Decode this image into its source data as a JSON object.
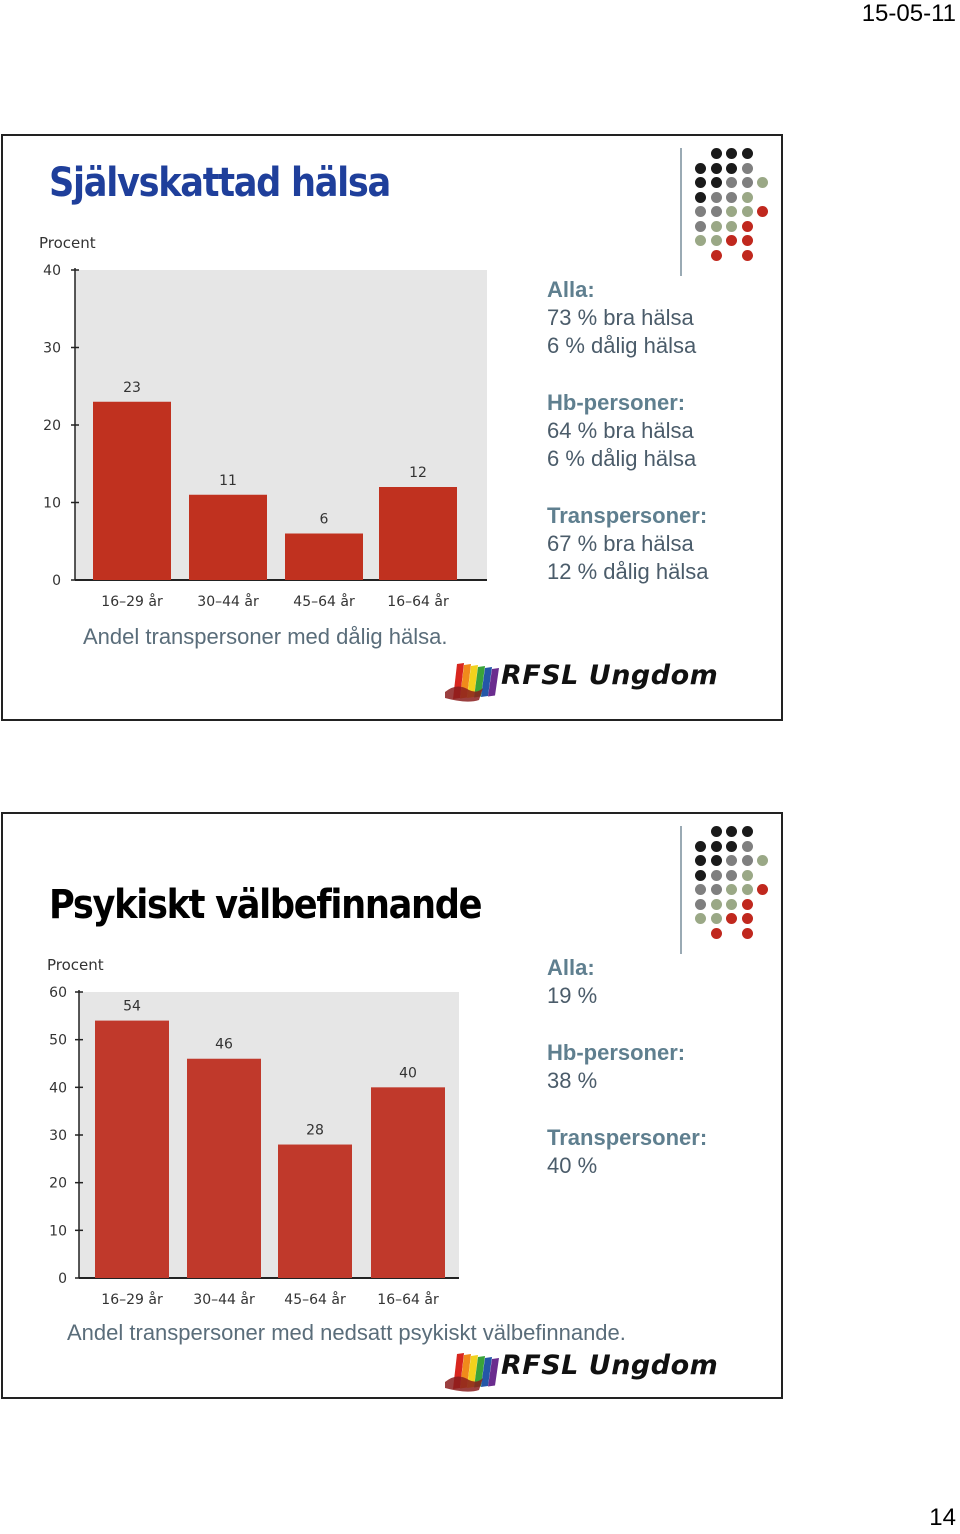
{
  "page": {
    "date": "15-05-11",
    "number": "14"
  },
  "slides": [
    {
      "title": "Självskattad hälsa",
      "caption": "Andel transpersoner med dålig hälsa.",
      "stats": [
        {
          "head": "Alla:",
          "lines": [
            "73 % bra hälsa",
            "6 % dålig hälsa"
          ]
        },
        {
          "head": "Hb-personer:",
          "lines": [
            "64 % bra hälsa",
            "6 % dålig hälsa"
          ]
        },
        {
          "head": "Transpersoner:",
          "lines": [
            "67 % bra hälsa",
            "12 % dålig hälsa"
          ]
        }
      ],
      "logo_text": "RFSL Ungdom"
    },
    {
      "title": "Psykiskt välbefinnande",
      "caption": "Andel transpersoner med nedsatt psykiskt välbefinnande.",
      "stats": [
        {
          "head": "Alla:",
          "lines": [
            "19 %"
          ]
        },
        {
          "head": "Hb-personer:",
          "lines": [
            "38 %"
          ]
        },
        {
          "head": "Transpersoner:",
          "lines": [
            "40 %"
          ]
        }
      ],
      "logo_text": "RFSL Ungdom"
    }
  ],
  "chart_data": [
    {
      "type": "bar",
      "ylabel": "Procent",
      "categories": [
        "16–29 år",
        "30–44 år",
        "45–64 år",
        "16–64 år"
      ],
      "values": [
        23,
        11,
        6,
        12
      ],
      "ylim": [
        0,
        40
      ],
      "yticks": [
        0,
        10,
        20,
        30,
        40
      ],
      "bar_color": "#c0311f",
      "plot_bg": "#e6e6e6",
      "data_labels": true
    },
    {
      "type": "bar",
      "ylabel": "Procent",
      "categories": [
        "16–29 år",
        "30–44 år",
        "45–64 år",
        "16–64 år"
      ],
      "values": [
        54,
        46,
        28,
        40
      ],
      "ylim": [
        0,
        60
      ],
      "yticks": [
        0,
        10,
        20,
        30,
        40,
        50,
        60
      ],
      "bar_color": "#c0392b",
      "plot_bg": "#e6e6e6",
      "data_labels": true
    }
  ],
  "decor": {
    "dot_colors": {
      "black": "#1a1a1a",
      "gray": "#7f7f7f",
      "green": "#9aa886",
      "red": "#c0281e"
    },
    "rainbow": [
      "#d8261e",
      "#f08a1b",
      "#f2d21c",
      "#3aa33a",
      "#2456a8",
      "#6a2c8e"
    ]
  }
}
